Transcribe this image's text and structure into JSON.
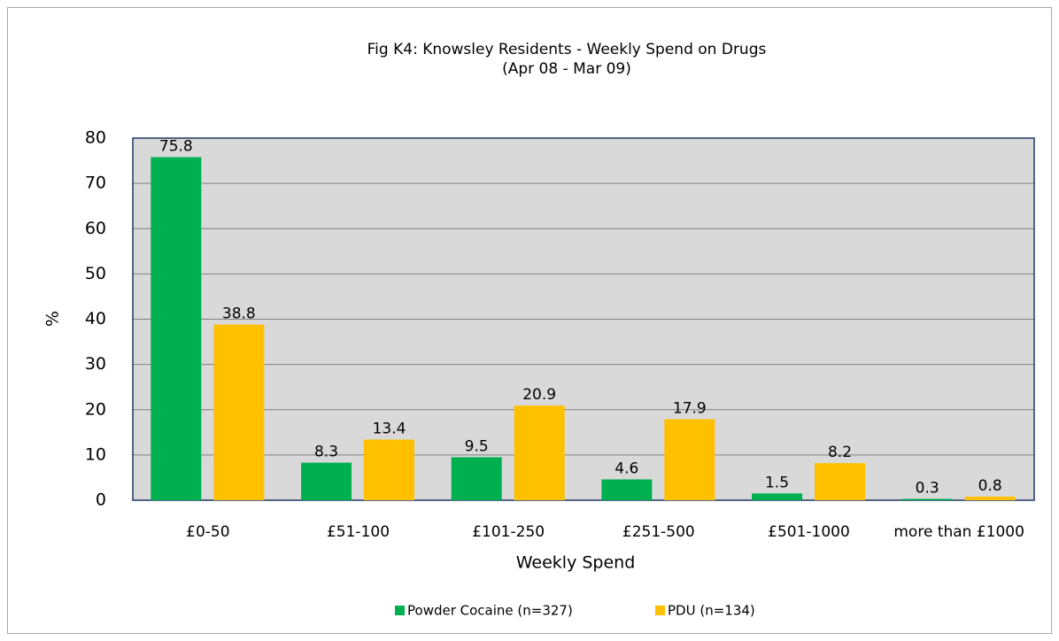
{
  "chart_data": {
    "type": "bar",
    "title": "Fig K4: Knowsley Residents - Weekly Spend on Drugs",
    "subtitle": "(Apr 08 - Mar 09)",
    "x_label": "Weekly Spend",
    "y_label": "%",
    "categories": [
      "£0-50",
      "£51-100",
      "£101-250",
      "£251-500",
      "£501-1000",
      "more than £1000"
    ],
    "series": [
      {
        "name": "Powder Cocaine (n=327)",
        "color": "#00b050",
        "values": [
          75.8,
          8.3,
          9.5,
          4.6,
          1.5,
          0.3
        ]
      },
      {
        "name": "PDU (n=134)",
        "color": "#ffc000",
        "values": [
          38.8,
          13.4,
          20.9,
          17.9,
          8.2,
          0.8
        ]
      }
    ],
    "ylim": [
      0,
      80
    ],
    "yticks": [
      0,
      10,
      20,
      30,
      40,
      50,
      60,
      70,
      80
    ],
    "grid": true,
    "legend": "bottom"
  }
}
